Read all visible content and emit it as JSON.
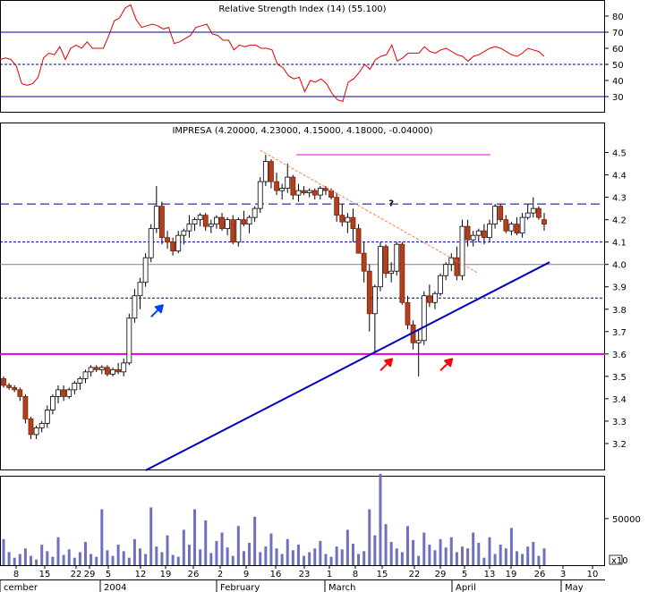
{
  "chart_data": [
    {
      "type": "line",
      "title": "Relative Strength Index (14) (55.100)",
      "ylim": [
        20,
        90
      ],
      "ticks": [
        "30",
        "40",
        "50",
        "60",
        "70",
        "80"
      ],
      "reference_lines": [
        70,
        50,
        30
      ],
      "x": [
        0,
        1,
        2,
        3,
        4,
        5,
        6,
        7,
        8,
        9,
        10,
        11,
        12,
        13,
        14,
        15,
        16,
        17,
        18,
        19,
        20,
        21,
        22,
        23,
        24,
        25,
        26,
        27,
        28,
        29,
        30,
        31,
        32,
        33,
        34,
        35,
        36,
        37,
        38,
        39,
        40,
        41,
        42,
        43,
        44,
        45,
        46,
        47,
        48,
        49,
        50,
        51,
        52,
        53,
        54,
        55,
        56,
        57,
        58,
        59,
        60,
        61,
        62,
        63,
        64,
        65,
        66,
        67,
        68,
        69,
        70,
        71,
        72,
        73,
        74,
        75,
        76,
        77,
        78,
        79,
        80,
        81,
        82,
        83,
        84,
        85,
        86,
        87,
        88,
        89,
        90,
        91,
        92,
        93,
        94,
        95,
        96,
        97,
        98,
        99,
        100
      ],
      "values": [
        53,
        54,
        53,
        49,
        38,
        37,
        38,
        42,
        54,
        57,
        56,
        61,
        53,
        60,
        62,
        60,
        64,
        60,
        60,
        60,
        68,
        77,
        79,
        85,
        87,
        78,
        73,
        74,
        75,
        74,
        72,
        73,
        63,
        64,
        66,
        68,
        73,
        74,
        75,
        69,
        68,
        65,
        65,
        59,
        62,
        61,
        62,
        62,
        60,
        60,
        59,
        50,
        48,
        43,
        41,
        42,
        33,
        40,
        39,
        41,
        38,
        32,
        28,
        27,
        39,
        41,
        45,
        50,
        47,
        53,
        55,
        56,
        62,
        52,
        54,
        57,
        57,
        57,
        61,
        58,
        57,
        59,
        60,
        58,
        56,
        55,
        52,
        55,
        56,
        58,
        60,
        61,
        60,
        58,
        56,
        55,
        57,
        60,
        59,
        58,
        55
      ],
      "series_color": "#e00000"
    },
    {
      "type": "candlestick",
      "title": "IMPRESA (4.20000, 4.23000, 4.15000, 4.18000, -0.04000)",
      "ylim": [
        3.08,
        4.63
      ],
      "yticks": [
        "3.2",
        "3.3",
        "3.4",
        "3.5",
        "3.6",
        "3.7",
        "3.8",
        "3.9",
        "4.0",
        "4.1",
        "4.2",
        "4.3",
        "4.4",
        "4.5"
      ],
      "candles": [
        [
          3.49,
          3.5,
          3.45,
          3.46
        ],
        [
          3.46,
          3.47,
          3.44,
          3.45
        ],
        [
          3.45,
          3.46,
          3.43,
          3.44
        ],
        [
          3.44,
          3.45,
          3.39,
          3.41
        ],
        [
          3.41,
          3.42,
          3.29,
          3.31
        ],
        [
          3.31,
          3.32,
          3.22,
          3.24
        ],
        [
          3.24,
          3.28,
          3.22,
          3.27
        ],
        [
          3.27,
          3.3,
          3.25,
          3.29
        ],
        [
          3.29,
          3.37,
          3.27,
          3.35
        ],
        [
          3.35,
          3.42,
          3.33,
          3.41
        ],
        [
          3.41,
          3.46,
          3.38,
          3.44
        ],
        [
          3.44,
          3.46,
          3.39,
          3.41
        ],
        [
          3.41,
          3.45,
          3.4,
          3.44
        ],
        [
          3.44,
          3.48,
          3.42,
          3.47
        ],
        [
          3.47,
          3.5,
          3.44,
          3.49
        ],
        [
          3.49,
          3.53,
          3.47,
          3.52
        ],
        [
          3.52,
          3.55,
          3.5,
          3.54
        ],
        [
          3.54,
          3.55,
          3.52,
          3.53
        ],
        [
          3.53,
          3.55,
          3.51,
          3.54
        ],
        [
          3.54,
          3.55,
          3.5,
          3.51
        ],
        [
          3.51,
          3.54,
          3.5,
          3.53
        ],
        [
          3.53,
          3.56,
          3.51,
          3.52
        ],
        [
          3.52,
          3.58,
          3.5,
          3.56
        ],
        [
          3.56,
          3.78,
          3.55,
          3.76
        ],
        [
          3.76,
          3.89,
          3.74,
          3.86
        ],
        [
          3.86,
          3.94,
          3.8,
          3.92
        ],
        [
          3.92,
          4.05,
          3.9,
          4.03
        ],
        [
          4.03,
          4.18,
          4.01,
          4.16
        ],
        [
          4.16,
          4.35,
          4.14,
          4.26
        ],
        [
          4.26,
          4.28,
          4.09,
          4.12
        ],
        [
          4.12,
          4.15,
          4.07,
          4.1
        ],
        [
          4.1,
          4.12,
          4.04,
          4.06
        ],
        [
          4.06,
          4.15,
          4.05,
          4.13
        ],
        [
          4.13,
          4.16,
          4.09,
          4.15
        ],
        [
          4.15,
          4.22,
          4.12,
          4.18
        ],
        [
          4.18,
          4.21,
          4.15,
          4.2
        ],
        [
          4.2,
          4.23,
          4.17,
          4.22
        ],
        [
          4.22,
          4.23,
          4.15,
          4.17
        ],
        [
          4.17,
          4.2,
          4.14,
          4.18
        ],
        [
          4.18,
          4.22,
          4.16,
          4.21
        ],
        [
          4.21,
          4.23,
          4.15,
          4.16
        ],
        [
          4.16,
          4.21,
          4.13,
          4.2
        ],
        [
          4.2,
          4.22,
          4.09,
          4.1
        ],
        [
          4.1,
          4.21,
          4.08,
          4.2
        ],
        [
          4.2,
          4.24,
          4.17,
          4.18
        ],
        [
          4.18,
          4.22,
          4.14,
          4.21
        ],
        [
          4.21,
          4.26,
          4.19,
          4.25
        ],
        [
          4.25,
          4.39,
          4.23,
          4.37
        ],
        [
          4.37,
          4.49,
          4.35,
          4.46
        ],
        [
          4.46,
          4.47,
          4.34,
          4.37
        ],
        [
          4.37,
          4.41,
          4.31,
          4.33
        ],
        [
          4.33,
          4.36,
          4.29,
          4.34
        ],
        [
          4.34,
          4.45,
          4.32,
          4.39
        ],
        [
          4.39,
          4.4,
          4.29,
          4.31
        ],
        [
          4.31,
          4.36,
          4.28,
          4.33
        ],
        [
          4.33,
          4.35,
          4.31,
          4.32
        ],
        [
          4.32,
          4.34,
          4.3,
          4.33
        ],
        [
          4.33,
          4.34,
          4.29,
          4.31
        ],
        [
          4.31,
          4.35,
          4.29,
          4.34
        ],
        [
          4.34,
          4.35,
          4.31,
          4.33
        ],
        [
          4.33,
          4.34,
          4.29,
          4.3
        ],
        [
          4.3,
          4.32,
          4.19,
          4.22
        ],
        [
          4.22,
          4.27,
          4.17,
          4.19
        ],
        [
          4.19,
          4.23,
          4.14,
          4.21
        ],
        [
          4.21,
          4.25,
          4.1,
          4.16
        ],
        [
          4.16,
          4.18,
          4.05,
          4.05
        ],
        [
          4.05,
          4.1,
          3.92,
          3.97
        ],
        [
          3.97,
          4.0,
          3.7,
          3.78
        ],
        [
          3.78,
          3.91,
          3.61,
          3.9
        ],
        [
          3.9,
          4.1,
          3.88,
          4.08
        ],
        [
          4.08,
          4.09,
          3.94,
          3.96
        ],
        [
          3.96,
          4.01,
          3.92,
          3.97
        ],
        [
          3.97,
          4.1,
          3.95,
          4.09
        ],
        [
          4.09,
          4.1,
          3.82,
          3.83
        ],
        [
          3.83,
          3.86,
          3.71,
          3.73
        ],
        [
          3.73,
          3.75,
          3.62,
          3.65
        ],
        [
          3.65,
          3.71,
          3.5,
          3.66
        ],
        [
          3.66,
          3.88,
          3.64,
          3.86
        ],
        [
          3.86,
          3.91,
          3.81,
          3.83
        ],
        [
          3.83,
          3.88,
          3.8,
          3.87
        ],
        [
          3.87,
          3.96,
          3.86,
          3.95
        ],
        [
          3.95,
          4.01,
          3.93,
          4.0
        ],
        [
          4.0,
          4.05,
          3.97,
          4.03
        ],
        [
          4.03,
          4.08,
          3.93,
          3.95
        ],
        [
          3.95,
          4.2,
          3.93,
          4.17
        ],
        [
          4.17,
          4.2,
          4.08,
          4.11
        ],
        [
          4.11,
          4.15,
          4.08,
          4.13
        ],
        [
          4.13,
          4.16,
          4.1,
          4.15
        ],
        [
          4.15,
          4.18,
          4.09,
          4.12
        ],
        [
          4.12,
          4.2,
          4.1,
          4.18
        ],
        [
          4.18,
          4.27,
          4.16,
          4.26
        ],
        [
          4.26,
          4.27,
          4.19,
          4.2
        ],
        [
          4.2,
          4.22,
          4.14,
          4.15
        ],
        [
          4.15,
          4.19,
          4.13,
          4.18
        ],
        [
          4.18,
          4.21,
          4.13,
          4.14
        ],
        [
          4.14,
          4.23,
          4.12,
          4.21
        ],
        [
          4.21,
          4.27,
          4.2,
          4.23
        ],
        [
          4.23,
          4.3,
          4.21,
          4.25
        ],
        [
          4.25,
          4.26,
          4.2,
          4.21
        ],
        [
          4.2,
          4.23,
          4.15,
          4.18
        ]
      ],
      "reference_lines": [
        {
          "value": 4.49,
          "color": "#e000e0",
          "style": "solid",
          "from": 0.49,
          "to": 0.81
        },
        {
          "value": 4.27,
          "color": "#000080",
          "style": "dashed"
        },
        {
          "value": 4.1,
          "color": "#0000a0",
          "style": "dashed"
        },
        {
          "value": 4.0,
          "color": "#808080",
          "style": "solid"
        },
        {
          "value": 3.85,
          "color": "#0000a0",
          "style": "dashed"
        },
        {
          "value": 3.6,
          "color": "#e000e0",
          "style": "solid"
        }
      ],
      "trendlines": [
        {
          "color": "#0000c0",
          "from": [
            26,
            3.08
          ],
          "to": [
            100,
            4.01
          ]
        },
        {
          "color": "#ff8040",
          "style": "dotted",
          "from": [
            47,
            4.51
          ],
          "to": [
            87,
            3.96
          ]
        }
      ],
      "annotations": [
        {
          "text": "?",
          "color": "#ff8040",
          "x": 71,
          "y": 4.26
        },
        {
          "text": "arrow-blue",
          "color": "#0040ff",
          "x": 28,
          "y": 3.79
        },
        {
          "text": "arrow-red",
          "color": "#ff0000",
          "x": 70,
          "y": 3.55
        },
        {
          "text": "arrow-red",
          "color": "#ff0000",
          "x": 81,
          "y": 3.55
        }
      ]
    },
    {
      "type": "bar",
      "title": "",
      "ylim": [
        0,
        95000
      ],
      "yticks": [
        "50000"
      ],
      "corner_label": "x10",
      "values": [
        28000,
        14000,
        8000,
        12000,
        18000,
        10000,
        6000,
        22000,
        15000,
        9000,
        30000,
        11000,
        17000,
        8000,
        14000,
        25000,
        12000,
        9000,
        60000,
        16000,
        10000,
        22000,
        15000,
        8000,
        28000,
        18000,
        12000,
        62000,
        20000,
        14000,
        32000,
        11000,
        9000,
        38000,
        22000,
        60000,
        17000,
        48000,
        13000,
        26000,
        35000,
        19000,
        10000,
        42000,
        15000,
        24000,
        52000,
        14000,
        20000,
        34000,
        18000,
        12000,
        28000,
        16000,
        22000,
        10000,
        14000,
        18000,
        26000,
        12000,
        9000,
        20000,
        17000,
        38000,
        23000,
        12000,
        15000,
        60000,
        32000,
        98000,
        44000,
        25000,
        18000,
        14000,
        42000,
        27000,
        10000,
        35000,
        22000,
        16000,
        28000,
        19000,
        30000,
        14000,
        20000,
        18000,
        35000,
        24000,
        8000,
        30000,
        12000,
        22000,
        18000,
        40000,
        15000,
        12000,
        20000,
        25000,
        10000,
        18000,
        14000
      ]
    }
  ],
  "x_axis": {
    "day_labels": [
      "8",
      "15",
      "22",
      "29",
      "5",
      "12",
      "19",
      "26",
      "2",
      "9",
      "16",
      "23",
      "1",
      "8",
      "15",
      "22",
      "29",
      "5",
      "13",
      "19",
      "26",
      "3",
      "10"
    ],
    "month_labels": [
      "cember",
      "2004",
      "February",
      "March",
      "April",
      "May"
    ]
  }
}
